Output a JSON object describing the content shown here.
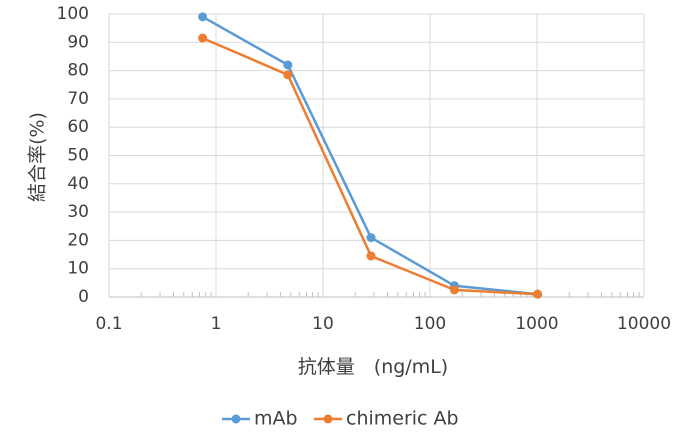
{
  "chart_data": {
    "type": "line",
    "title": "",
    "xlabel": "抗体量　(ng/mL)",
    "ylabel": "結合率(%)",
    "x_scale": "log",
    "xlim": [
      0.1,
      10000
    ],
    "ylim": [
      0,
      100
    ],
    "x_ticks": [
      "0.1",
      "1",
      "10",
      "100",
      "1000",
      "10000"
    ],
    "y_ticks": [
      "0",
      "10",
      "20",
      "30",
      "40",
      "50",
      "60",
      "70",
      "80",
      "90",
      "100"
    ],
    "grid": true,
    "legend_position": "bottom",
    "series": [
      {
        "name": "mAb",
        "color": "#5B9BD5",
        "x": [
          0.75,
          4.69,
          28.1,
          169,
          1013
        ],
        "y": [
          99,
          82,
          21,
          4,
          1
        ]
      },
      {
        "name": "chimeric Ab",
        "color": "#ED7D31",
        "x": [
          0.75,
          4.69,
          28.1,
          169,
          1013
        ],
        "y": [
          91.5,
          78.5,
          14.5,
          2.5,
          1
        ]
      }
    ]
  }
}
